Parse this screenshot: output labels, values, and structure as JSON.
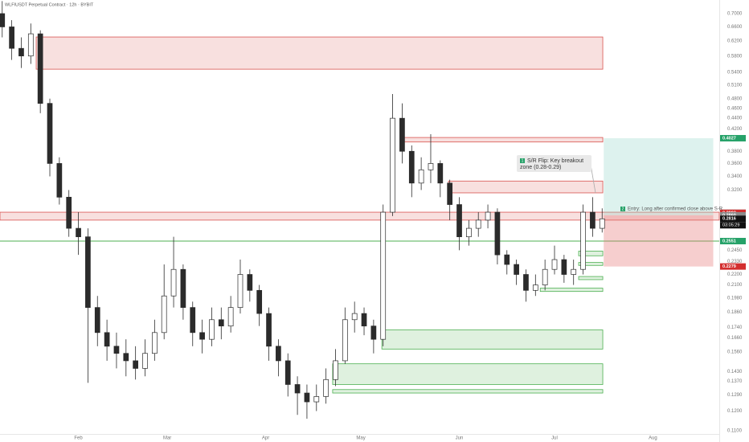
{
  "chart_data": {
    "type": "candlestick",
    "title": "WLFIUSDT Perpetual Contract · 12h · BYBIT",
    "x": [
      7,
      10,
      13,
      16,
      19,
      22,
      25,
      28,
      31,
      34,
      37,
      40,
      43,
      46,
      49,
      52,
      55,
      58,
      61,
      64,
      67,
      70,
      73,
      76,
      79,
      82,
      85,
      88,
      91,
      94,
      97,
      100,
      103,
      106,
      109,
      112,
      115,
      118,
      121,
      124,
      127,
      130,
      133,
      136,
      139,
      142,
      145,
      148,
      151,
      154,
      157,
      160,
      163,
      166,
      169,
      172,
      175,
      178,
      181,
      184,
      187,
      190,
      193,
      196
    ],
    "open": [
      0.7,
      0.66,
      0.6,
      0.58,
      0.64,
      0.47,
      0.36,
      0.31,
      0.27,
      0.26,
      0.19,
      0.17,
      0.16,
      0.155,
      0.15,
      0.145,
      0.155,
      0.17,
      0.2,
      0.225,
      0.19,
      0.17,
      0.165,
      0.18,
      0.175,
      0.19,
      0.22,
      0.205,
      0.185,
      0.16,
      0.15,
      0.135,
      0.13,
      0.125,
      0.128,
      0.138,
      0.15,
      0.18,
      0.185,
      0.175,
      0.165,
      0.29,
      0.44,
      0.38,
      0.33,
      0.35,
      0.36,
      0.33,
      0.3,
      0.26,
      0.27,
      0.28,
      0.29,
      0.24,
      0.23,
      0.22,
      0.205,
      0.21,
      0.225,
      0.235,
      0.22,
      0.225,
      0.29,
      0.27
    ],
    "high": [
      0.74,
      0.68,
      0.63,
      0.67,
      0.65,
      0.48,
      0.37,
      0.32,
      0.29,
      0.27,
      0.2,
      0.18,
      0.17,
      0.165,
      0.16,
      0.165,
      0.18,
      0.23,
      0.26,
      0.23,
      0.195,
      0.18,
      0.19,
      0.19,
      0.2,
      0.235,
      0.225,
      0.21,
      0.19,
      0.165,
      0.155,
      0.14,
      0.135,
      0.135,
      0.145,
      0.158,
      0.19,
      0.195,
      0.19,
      0.18,
      0.3,
      0.49,
      0.47,
      0.39,
      0.37,
      0.41,
      0.365,
      0.335,
      0.31,
      0.28,
      0.29,
      0.3,
      0.295,
      0.245,
      0.235,
      0.225,
      0.22,
      0.235,
      0.25,
      0.24,
      0.235,
      0.3,
      0.31,
      0.295
    ],
    "low": [
      0.63,
      0.57,
      0.55,
      0.56,
      0.45,
      0.34,
      0.3,
      0.26,
      0.24,
      0.136,
      0.16,
      0.15,
      0.145,
      0.14,
      0.138,
      0.14,
      0.15,
      0.165,
      0.19,
      0.18,
      0.16,
      0.155,
      0.16,
      0.165,
      0.17,
      0.185,
      0.195,
      0.175,
      0.15,
      0.14,
      0.128,
      0.118,
      0.116,
      0.12,
      0.124,
      0.134,
      0.148,
      0.17,
      0.168,
      0.155,
      0.16,
      0.285,
      0.36,
      0.31,
      0.32,
      0.33,
      0.31,
      0.28,
      0.245,
      0.25,
      0.26,
      0.27,
      0.23,
      0.22,
      0.21,
      0.195,
      0.2,
      0.205,
      0.22,
      0.212,
      0.21,
      0.22,
      0.26,
      0.265
    ],
    "close": [
      0.66,
      0.6,
      0.58,
      0.64,
      0.47,
      0.36,
      0.31,
      0.27,
      0.26,
      0.19,
      0.17,
      0.16,
      0.155,
      0.15,
      0.145,
      0.155,
      0.17,
      0.2,
      0.225,
      0.19,
      0.17,
      0.165,
      0.18,
      0.175,
      0.19,
      0.22,
      0.205,
      0.185,
      0.16,
      0.15,
      0.135,
      0.13,
      0.125,
      0.128,
      0.138,
      0.15,
      0.18,
      0.185,
      0.175,
      0.165,
      0.29,
      0.44,
      0.38,
      0.33,
      0.35,
      0.36,
      0.33,
      0.3,
      0.26,
      0.27,
      0.28,
      0.29,
      0.24,
      0.23,
      0.22,
      0.205,
      0.21,
      0.225,
      0.235,
      0.22,
      0.225,
      0.29,
      0.27,
      0.2816
    ],
    "up_color": "#ffffff",
    "down_color": "#2b2b2b",
    "xlim": [
      6.3,
      232.9
    ],
    "xticks": [
      {
        "value": 31,
        "label": "Feb"
      },
      {
        "value": 59,
        "label": "Mar"
      },
      {
        "value": 90,
        "label": "Apr"
      },
      {
        "value": 120,
        "label": "May"
      },
      {
        "value": 151,
        "label": "Jun"
      },
      {
        "value": 181,
        "label": "Jul"
      },
      {
        "value": 212,
        "label": "Aug"
      }
    ],
    "ylim": [
      0.1084,
      0.7436
    ],
    "log_scale": true,
    "yticks": [
      {
        "value": 0.7,
        "label": "0.7000"
      },
      {
        "value": 0.66,
        "label": "0.6600"
      },
      {
        "value": 0.62,
        "label": "0.6200"
      },
      {
        "value": 0.58,
        "label": "0.5800"
      },
      {
        "value": 0.54,
        "label": "0.5400"
      },
      {
        "value": 0.51,
        "label": "0.5100"
      },
      {
        "value": 0.48,
        "label": "0.4800"
      },
      {
        "value": 0.46,
        "label": "0.4600"
      },
      {
        "value": 0.44,
        "label": "0.4400"
      },
      {
        "value": 0.42,
        "label": "0.4200"
      },
      {
        "value": 0.38,
        "label": "0.3800"
      },
      {
        "value": 0.36,
        "label": "0.3600"
      },
      {
        "value": 0.34,
        "label": "0.3400"
      },
      {
        "value": 0.32,
        "label": "0.3200"
      },
      {
        "value": 0.245,
        "label": "0.2450"
      },
      {
        "value": 0.233,
        "label": "0.2330"
      },
      {
        "value": 0.22,
        "label": "0.2200"
      },
      {
        "value": 0.21,
        "label": "0.2100"
      },
      {
        "value": 0.198,
        "label": "0.1980"
      },
      {
        "value": 0.186,
        "label": "0.1860"
      },
      {
        "value": 0.174,
        "label": "0.1740"
      },
      {
        "value": 0.166,
        "label": "0.1660"
      },
      {
        "value": 0.156,
        "label": "0.1560"
      },
      {
        "value": 0.143,
        "label": "0.1430"
      },
      {
        "value": 0.137,
        "label": "0.1370"
      },
      {
        "value": 0.129,
        "label": "0.1290"
      },
      {
        "value": 0.12,
        "label": "0.1200"
      },
      {
        "value": 0.11,
        "label": "0.1100"
      }
    ],
    "zones": [
      {
        "top": 0.631,
        "bottom": 0.547,
        "start": 17.7,
        "end": 196.2,
        "color": "#d9534f"
      },
      {
        "top": 0.404,
        "bottom": 0.396,
        "start": 132.9,
        "end": 196.2,
        "color": "#d9534f"
      },
      {
        "top": 0.333,
        "bottom": 0.316,
        "start": 147.6,
        "end": 196.2,
        "color": "#d9534f"
      },
      {
        "top": 0.29,
        "bottom": 0.28,
        "color": "#d9534f"
      },
      {
        "top": 0.244,
        "bottom": 0.239,
        "start": 188.6,
        "end": 196.2,
        "color": "#4caf50"
      },
      {
        "top": 0.232,
        "bottom": 0.229,
        "start": 188.6,
        "end": 196.2,
        "color": "#4caf50"
      },
      {
        "top": 0.218,
        "bottom": 0.215,
        "start": 188.6,
        "end": 196.2,
        "color": "#4caf50"
      },
      {
        "top": 0.207,
        "bottom": 0.204,
        "start": 176.5,
        "end": 196.2,
        "color": "#4caf50"
      },
      {
        "top": 0.172,
        "bottom": 0.158,
        "start": 126.6,
        "end": 196.2,
        "color": "#4caf50"
      },
      {
        "top": 0.148,
        "bottom": 0.135,
        "start": 111.1,
        "end": 196.2,
        "color": "#4caf50"
      },
      {
        "top": 0.132,
        "bottom": 0.13,
        "start": 111.1,
        "end": 196.2,
        "color": "#4caf50"
      }
    ],
    "lines": [
      {
        "value": 0.2551,
        "color": "#4caf50"
      }
    ],
    "position": {
      "start": 196.5,
      "end": 231,
      "target": 0.4027,
      "entry": 0.286,
      "stop": 0.2279
    },
    "price_labels": [
      {
        "value": 0.4027,
        "label": "0.4027",
        "color": "#26a269"
      },
      {
        "value": 0.2893,
        "label": "0.2893",
        "color": "#8a8a8a"
      },
      {
        "value": 0.2892,
        "label": "0.2892",
        "color": "#d32f2f"
      },
      {
        "value": 0.286,
        "label": "0.2860",
        "color": "#8a8a8a"
      },
      {
        "value": 0.2816,
        "label": "0.2816",
        "color": "#111111"
      },
      {
        "value": 0.2551,
        "label": "0.2551",
        "color": "#26a269"
      },
      {
        "value": 0.2279,
        "label": "0.2279",
        "color": "#d32f2f"
      }
    ],
    "countdown": "03:05:29",
    "annotations": [
      {
        "number": 1,
        "text": "S/R Flip: Key breakout zone (0.28-0.29)"
      },
      {
        "number": 2,
        "text": "Entry: Long after confirmed close above S-R"
      }
    ]
  }
}
